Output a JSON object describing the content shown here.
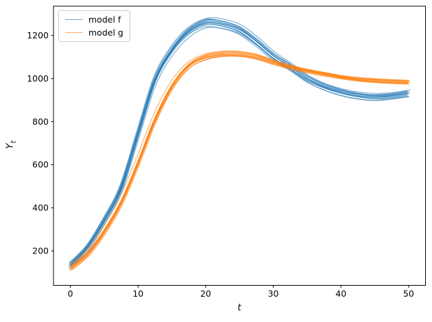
{
  "figure": {
    "background": "#ffffff",
    "axis_color": "#000000"
  },
  "chart_data": {
    "type": "line",
    "title": "",
    "xlabel": "t",
    "ylabel": "Y_t",
    "ylabel_main": "Y",
    "ylabel_sub": "t",
    "xlim": [
      -2.5,
      52.5
    ],
    "ylim": [
      40,
      1336
    ],
    "xticks": [
      0,
      10,
      20,
      30,
      40,
      50
    ],
    "yticks": [
      200,
      400,
      600,
      800,
      1000,
      1200
    ],
    "grid": false,
    "legend": {
      "position": "upper left",
      "entries": [
        "model f",
        "model g"
      ]
    },
    "series": [
      {
        "name": "model f",
        "color": "#1f77b4",
        "alpha": 0.6,
        "n_members": 13,
        "t": [
          0,
          2.5,
          5,
          7.5,
          10,
          12.5,
          15,
          17.5,
          20,
          22.5,
          25,
          27.5,
          30,
          32.5,
          35,
          37.5,
          40,
          42.5,
          45,
          47.5,
          50
        ],
        "mean": [
          135,
          215,
          340,
          490,
          740,
          990,
          1130,
          1218,
          1260,
          1254,
          1228,
          1172,
          1105,
          1055,
          1000,
          963,
          938,
          922,
          915,
          920,
          931
        ],
        "spread": [
          14,
          14,
          15,
          16,
          17,
          18,
          18,
          19,
          20,
          20,
          20,
          19,
          18,
          16,
          15,
          14,
          14,
          14,
          15,
          15,
          16
        ]
      },
      {
        "name": "model g",
        "color": "#ff7f0e",
        "alpha": 0.6,
        "n_members": 13,
        "t": [
          0,
          2.5,
          5,
          7.5,
          10,
          12.5,
          15,
          17.5,
          20,
          22.5,
          25,
          27.5,
          30,
          32.5,
          35,
          37.5,
          40,
          42.5,
          45,
          47.5,
          50
        ],
        "mean": [
          120,
          185,
          290,
          425,
          610,
          810,
          965,
          1060,
          1100,
          1114,
          1113,
          1100,
          1075,
          1053,
          1036,
          1022,
          1008,
          997,
          990,
          985,
          982
        ],
        "spread": [
          12,
          12,
          13,
          14,
          15,
          16,
          15,
          14,
          13,
          12,
          11,
          11,
          10,
          10,
          9,
          9,
          8,
          8,
          8,
          8,
          8
        ]
      }
    ]
  }
}
